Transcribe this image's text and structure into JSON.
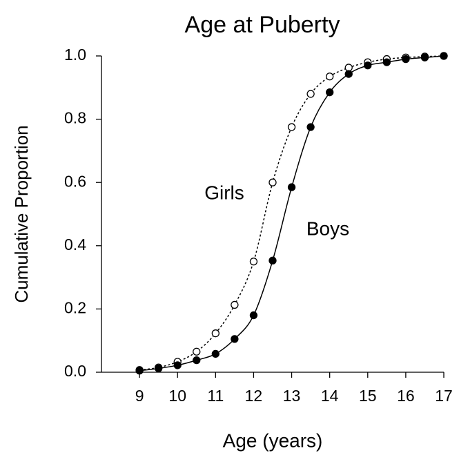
{
  "chart_data": {
    "type": "line",
    "title": "Age at Puberty",
    "xlabel": "Age (years)",
    "ylabel": "Cumulative Proportion",
    "x": [
      9,
      9.5,
      10,
      10.5,
      11,
      11.5,
      12,
      12.5,
      13,
      13.5,
      14,
      14.5,
      15,
      15.5,
      16,
      16.5,
      17
    ],
    "series": [
      {
        "name": "Girls",
        "color": "#000000",
        "linestyle": "dotted",
        "marker": "open",
        "values": [
          0.007,
          0.015,
          0.033,
          0.065,
          0.123,
          0.213,
          0.35,
          0.6,
          0.775,
          0.88,
          0.935,
          0.963,
          0.98,
          0.99,
          0.995,
          0.998,
          1.0
        ]
      },
      {
        "name": "Boys",
        "color": "#000000",
        "linestyle": "solid",
        "marker": "filled",
        "values": [
          0.005,
          0.012,
          0.022,
          0.038,
          0.058,
          0.105,
          0.18,
          0.353,
          0.585,
          0.775,
          0.885,
          0.943,
          0.97,
          0.98,
          0.99,
          0.995,
          1.0
        ]
      }
    ],
    "xlim": [
      8,
      17
    ],
    "xticks": [
      9,
      10,
      11,
      12,
      13,
      14,
      15,
      16,
      17
    ],
    "ylim": [
      0,
      1
    ],
    "yticks": [
      {
        "value": 0,
        "label": "0.0"
      },
      0.2,
      0.4,
      0.6,
      0.8,
      {
        "value": 1,
        "label": "1.0"
      }
    ],
    "grid": false
  }
}
